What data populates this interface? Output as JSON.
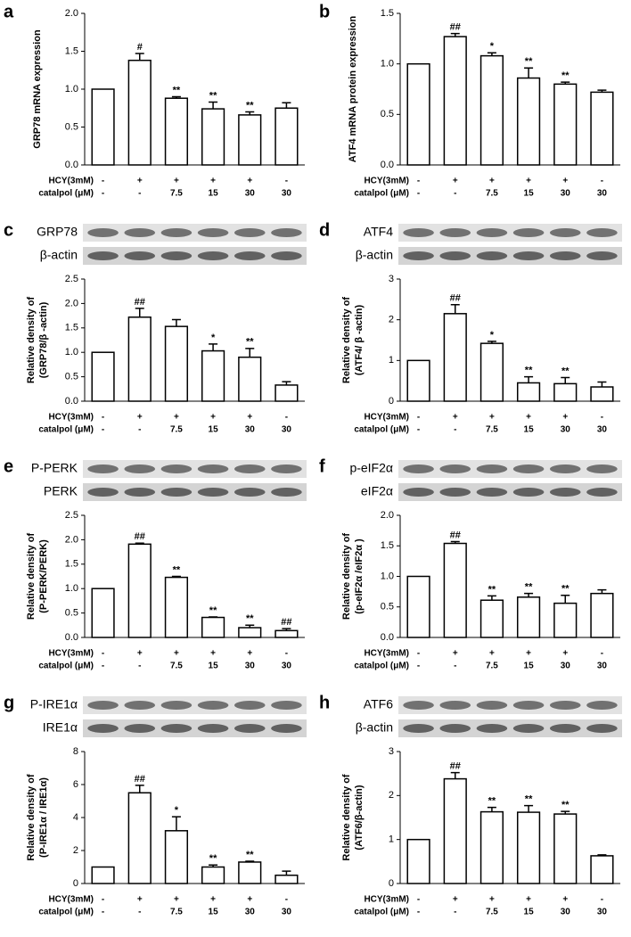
{
  "chart_data": [
    {
      "type": "bar",
      "panel": "a",
      "ylabel": [
        "GRP78 mRNA expression"
      ],
      "values": [
        1,
        1.38,
        0.88,
        0.74,
        0.66,
        0.75
      ],
      "errors": [
        0,
        0.09,
        0.02,
        0.09,
        0.04,
        0.07
      ],
      "annotations": [
        null,
        "#",
        "**",
        "**",
        "**",
        null
      ],
      "ylim": [
        0,
        2
      ],
      "yticks": [
        {
          "value": 0,
          "label": "0.0"
        },
        0.5,
        {
          "value": 1,
          "label": "1.0"
        },
        1.5,
        {
          "value": 2,
          "label": "2.0"
        }
      ],
      "rows": [
        {
          "label": "HCY(3mM)",
          "cells": [
            "-",
            "+",
            "+",
            "+",
            "+",
            "-"
          ]
        },
        {
          "label": "catalpol (μM)",
          "cells": [
            "-",
            "-",
            "7.5",
            "15",
            "30",
            "30"
          ]
        }
      ]
    },
    {
      "type": "bar",
      "panel": "b",
      "ylabel": [
        "ATF4 mRNA protein expression"
      ],
      "values": [
        1,
        1.27,
        1.08,
        0.86,
        0.8,
        0.72
      ],
      "errors": [
        0,
        0.03,
        0.03,
        0.1,
        0.02,
        0.02
      ],
      "annotations": [
        null,
        "##",
        "*",
        "**",
        "**",
        null
      ],
      "ylim": [
        0,
        1.5
      ],
      "yticks": [
        {
          "value": 0,
          "label": "0.0"
        },
        0.5,
        {
          "value": 1,
          "label": "1.0"
        },
        1.5
      ],
      "rows": [
        {
          "label": "HCY(3mM)",
          "cells": [
            "-",
            "+",
            "+",
            "+",
            "+",
            "-"
          ]
        },
        {
          "label": "catalpol (μM)",
          "cells": [
            "-",
            "-",
            "7.5",
            "15",
            "30",
            "30"
          ]
        }
      ]
    },
    {
      "type": "bar",
      "panel": "c",
      "blots": [
        "GRP78",
        "β-actin"
      ],
      "ylabel": [
        "Relative density of",
        "(GRP78/β -actin)"
      ],
      "values": [
        1,
        1.72,
        1.53,
        1.03,
        0.9,
        0.33
      ],
      "errors": [
        0,
        0.18,
        0.14,
        0.14,
        0.18,
        0.07
      ],
      "annotations": [
        null,
        "##",
        null,
        "*",
        "**",
        null
      ],
      "ylim": [
        0,
        2.5
      ],
      "yticks": [
        {
          "value": 0,
          "label": "0.0"
        },
        0.5,
        {
          "value": 1,
          "label": "1.0"
        },
        1.5,
        {
          "value": 2,
          "label": "2.0"
        },
        2.5
      ],
      "rows": [
        {
          "label": "HCY(3mM)",
          "cells": [
            "-",
            "+",
            "+",
            "+",
            "+",
            "-"
          ]
        },
        {
          "label": "catalpol (μM)",
          "cells": [
            "-",
            "-",
            "7.5",
            "15",
            "30",
            "30"
          ]
        }
      ]
    },
    {
      "type": "bar",
      "panel": "d",
      "blots": [
        "ATF4",
        "β-actin"
      ],
      "ylabel": [
        "Relative density of",
        "(ATF4/ β -actin)"
      ],
      "values": [
        1,
        2.15,
        1.42,
        0.45,
        0.43,
        0.35
      ],
      "errors": [
        0,
        0.22,
        0.05,
        0.15,
        0.15,
        0.12
      ],
      "annotations": [
        null,
        "##",
        "*",
        "**",
        "**",
        null
      ],
      "ylim": [
        0,
        3
      ],
      "yticks": [
        0,
        1,
        2,
        3
      ],
      "rows": [
        {
          "label": "HCY(3mM)",
          "cells": [
            "-",
            "+",
            "+",
            "+",
            "+",
            "-"
          ]
        },
        {
          "label": "catalpol (μM)",
          "cells": [
            "-",
            "-",
            "7.5",
            "15",
            "30",
            "30"
          ]
        }
      ]
    },
    {
      "type": "bar",
      "panel": "e",
      "blots": [
        "P-PERK",
        "PERK"
      ],
      "ylabel": [
        "Relative density of",
        "(P-PERK/PERK)"
      ],
      "values": [
        1,
        1.91,
        1.23,
        0.41,
        0.2,
        0.14
      ],
      "errors": [
        0,
        0.02,
        0.02,
        0.01,
        0.05,
        0.04
      ],
      "annotations": [
        null,
        "##",
        "**",
        "**",
        "**",
        "##"
      ],
      "ylim": [
        0,
        2.5
      ],
      "yticks": [
        {
          "value": 0,
          "label": "0.0"
        },
        0.5,
        {
          "value": 1,
          "label": "1.0"
        },
        1.5,
        {
          "value": 2,
          "label": "2.0"
        },
        2.5
      ],
      "rows": [
        {
          "label": "HCY(3mM)",
          "cells": [
            "-",
            "+",
            "+",
            "+",
            "+",
            "-"
          ]
        },
        {
          "label": "catalpol (μM)",
          "cells": [
            "-",
            "-",
            "7.5",
            "15",
            "30",
            "30"
          ]
        }
      ]
    },
    {
      "type": "bar",
      "panel": "f",
      "blots": [
        "p-eIF2α",
        "eIF2α"
      ],
      "ylabel": [
        "Relative density of",
        "(p-eIF2α /eIF2α )"
      ],
      "values": [
        1,
        1.54,
        0.61,
        0.66,
        0.56,
        0.72
      ],
      "errors": [
        0,
        0.03,
        0.07,
        0.06,
        0.13,
        0.06
      ],
      "annotations": [
        null,
        "##",
        "**",
        "**",
        "**",
        null
      ],
      "ylim": [
        0,
        2
      ],
      "yticks": [
        {
          "value": 0,
          "label": "0.0"
        },
        0.5,
        {
          "value": 1,
          "label": "1.0"
        },
        1.5,
        {
          "value": 2,
          "label": "2.0"
        }
      ],
      "rows": [
        {
          "label": "HCY(3mM)",
          "cells": [
            "-",
            "+",
            "+",
            "+",
            "+",
            "-"
          ]
        },
        {
          "label": "catalpol (μM)",
          "cells": [
            "-",
            "-",
            "7.5",
            "15",
            "30",
            "30"
          ]
        }
      ]
    },
    {
      "type": "bar",
      "panel": "g",
      "blots": [
        "P-IRE1α",
        "IRE1α"
      ],
      "ylabel": [
        "Relative density of",
        "(P-IRE1α / IRE1α)"
      ],
      "values": [
        1,
        5.5,
        3.2,
        1,
        1.3,
        0.5
      ],
      "errors": [
        0,
        0.45,
        0.85,
        0.12,
        0.05,
        0.25
      ],
      "annotations": [
        null,
        "##",
        "*",
        "**",
        "**",
        null
      ],
      "ylim": [
        0,
        8
      ],
      "yticks": [
        0,
        2,
        4,
        6,
        8
      ],
      "rows": [
        {
          "label": "HCY(3mM)",
          "cells": [
            "-",
            "+",
            "+",
            "+",
            "+",
            "-"
          ]
        },
        {
          "label": "catalpol (μM)",
          "cells": [
            "-",
            "-",
            "7.5",
            "15",
            "30",
            "30"
          ]
        }
      ]
    },
    {
      "type": "bar",
      "panel": "h",
      "blots": [
        "ATF6",
        "β-actin"
      ],
      "ylabel": [
        "Relative density of",
        "(ATF6/β-actin)"
      ],
      "values": [
        1,
        2.38,
        1.63,
        1.62,
        1.58,
        0.63
      ],
      "errors": [
        0,
        0.14,
        0.1,
        0.15,
        0.06,
        0.02
      ],
      "annotations": [
        null,
        "##",
        "**",
        "**",
        "**",
        null
      ],
      "ylim": [
        0,
        3
      ],
      "yticks": [
        0,
        1,
        2,
        3
      ],
      "rows": [
        {
          "label": "HCY(3mM)",
          "cells": [
            "-",
            "+",
            "+",
            "+",
            "+",
            "-"
          ]
        },
        {
          "label": "catalpol (μM)",
          "cells": [
            "-",
            "-",
            "7.5",
            "15",
            "30",
            "30"
          ]
        }
      ]
    }
  ]
}
